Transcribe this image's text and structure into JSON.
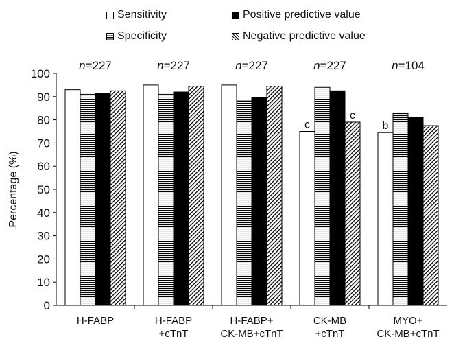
{
  "chart_data": {
    "type": "bar",
    "title": "",
    "xlabel": "",
    "ylabel": "Percentage (%)",
    "ylim": [
      0,
      100
    ],
    "yticks": [
      0,
      10,
      20,
      30,
      40,
      50,
      60,
      70,
      80,
      90,
      100
    ],
    "grid": false,
    "legend_placement": "top",
    "categories": [
      [
        "H-FABP"
      ],
      [
        "H-FABP",
        "+cTnT"
      ],
      [
        "H-FABP+",
        "CK-MB+cTnT"
      ],
      [
        "CK-MB",
        "+cTnT"
      ],
      [
        "MYO+",
        "CK-MB+cTnT"
      ]
    ],
    "n_labels": [
      "227",
      "227",
      "227",
      "227",
      "104"
    ],
    "n_prefix": "n",
    "series": [
      {
        "name": "Sensitivity",
        "pattern": "white",
        "values": [
          93,
          95,
          95,
          75,
          74.5
        ],
        "annotations": [
          "",
          "",
          "",
          "c",
          "b"
        ]
      },
      {
        "name": "Specificity",
        "pattern": "horizontal",
        "values": [
          91,
          91,
          88.5,
          94,
          83
        ],
        "annotations": [
          "",
          "",
          "",
          "",
          ""
        ]
      },
      {
        "name": "Positive predictive value",
        "pattern": "black",
        "values": [
          91.5,
          92,
          89.5,
          92.5,
          81
        ],
        "annotations": [
          "",
          "",
          "",
          "",
          ""
        ]
      },
      {
        "name": "Negative predictive value",
        "pattern": "diagonal",
        "values": [
          92.5,
          94.5,
          94.5,
          79,
          77.5
        ],
        "annotations": [
          "",
          "",
          "",
          "c",
          ""
        ]
      }
    ]
  }
}
